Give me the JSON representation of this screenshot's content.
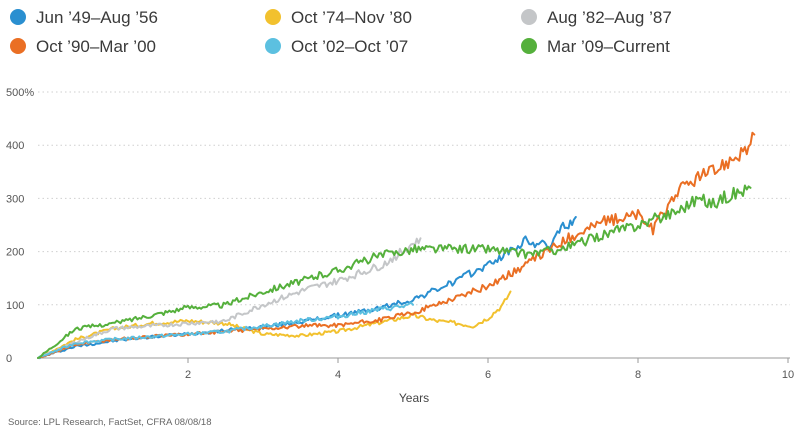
{
  "chart_data": {
    "type": "line",
    "title": "",
    "xlabel": "Years",
    "ylabel": "",
    "xlim": [
      0,
      10
    ],
    "ylim": [
      0,
      500
    ],
    "x_ticks": [
      {
        "value": 2,
        "label": "2"
      },
      {
        "value": 4,
        "label": "4"
      },
      {
        "value": 6,
        "label": "6"
      },
      {
        "value": 8,
        "label": "8"
      },
      {
        "value": 10,
        "label": "10"
      }
    ],
    "y_ticks": [
      {
        "value": 0,
        "label": "0"
      },
      {
        "value": 100,
        "label": "100"
      },
      {
        "value": 200,
        "label": "200"
      },
      {
        "value": 300,
        "label": "300"
      },
      {
        "value": 400,
        "label": "400"
      },
      {
        "value": 500,
        "label": "500%"
      }
    ],
    "grid": "horizontal dotted",
    "legend_position": "top",
    "source": "Source: LPL Research, FactSet, CFRA   08/08/18",
    "series": [
      {
        "name": "Jun ’49–Aug ’56",
        "color": "#2a8fd0",
        "points": [
          [
            0,
            0
          ],
          [
            0.5,
            22
          ],
          [
            1,
            32
          ],
          [
            1.5,
            40
          ],
          [
            2,
            45
          ],
          [
            2.5,
            52
          ],
          [
            3,
            58
          ],
          [
            3.5,
            68
          ],
          [
            4,
            80
          ],
          [
            4.5,
            92
          ],
          [
            5,
            110
          ],
          [
            5.5,
            140
          ],
          [
            6,
            175
          ],
          [
            6.5,
            220
          ],
          [
            6.8,
            210
          ],
          [
            7,
            245
          ],
          [
            7.17,
            265
          ]
        ]
      },
      {
        "name": "Oct ’74–Nov ’80",
        "color": "#f2c12e",
        "points": [
          [
            0,
            0
          ],
          [
            0.5,
            35
          ],
          [
            1,
            55
          ],
          [
            1.5,
            65
          ],
          [
            2,
            70
          ],
          [
            2.5,
            65
          ],
          [
            3,
            45
          ],
          [
            3.5,
            42
          ],
          [
            4,
            50
          ],
          [
            4.5,
            65
          ],
          [
            5,
            80
          ],
          [
            5.3,
            70
          ],
          [
            5.6,
            65
          ],
          [
            5.8,
            60
          ],
          [
            6,
            75
          ],
          [
            6.2,
            100
          ],
          [
            6.3,
            125
          ]
        ]
      },
      {
        "name": "Aug ’82–Aug ’87",
        "color": "#c4c6c8",
        "points": [
          [
            0,
            0
          ],
          [
            0.5,
            30
          ],
          [
            1,
            55
          ],
          [
            1.5,
            60
          ],
          [
            2,
            65
          ],
          [
            2.5,
            70
          ],
          [
            3,
            100
          ],
          [
            3.3,
            115
          ],
          [
            3.6,
            130
          ],
          [
            4,
            145
          ],
          [
            4.3,
            160
          ],
          [
            4.6,
            175
          ],
          [
            4.9,
            205
          ],
          [
            5.1,
            225
          ]
        ]
      },
      {
        "name": "Oct ’90–Mar ’00",
        "color": "#ea6f24",
        "points": [
          [
            0,
            0
          ],
          [
            0.5,
            25
          ],
          [
            1,
            35
          ],
          [
            1.5,
            40
          ],
          [
            2,
            45
          ],
          [
            2.5,
            50
          ],
          [
            3,
            55
          ],
          [
            3.5,
            60
          ],
          [
            4,
            62
          ],
          [
            4.5,
            70
          ],
          [
            5,
            85
          ],
          [
            5.5,
            110
          ],
          [
            6,
            135
          ],
          [
            6.5,
            175
          ],
          [
            7,
            220
          ],
          [
            7.5,
            255
          ],
          [
            8,
            270
          ],
          [
            8.2,
            240
          ],
          [
            8.5,
            310
          ],
          [
            8.8,
            340
          ],
          [
            9,
            350
          ],
          [
            9.3,
            380
          ],
          [
            9.5,
            400
          ],
          [
            9.55,
            420
          ]
        ]
      },
      {
        "name": "Oct ’02–Oct ’07",
        "color": "#5cc0e0",
        "points": [
          [
            0,
            0
          ],
          [
            0.5,
            28
          ],
          [
            1,
            35
          ],
          [
            1.5,
            40
          ],
          [
            2,
            45
          ],
          [
            2.5,
            50
          ],
          [
            3,
            60
          ],
          [
            3.5,
            70
          ],
          [
            4,
            78
          ],
          [
            4.5,
            90
          ],
          [
            5,
            100
          ]
        ]
      },
      {
        "name": "Mar ’09–Current",
        "color": "#55b03c",
        "points": [
          [
            0,
            0
          ],
          [
            0.5,
            55
          ],
          [
            1,
            65
          ],
          [
            1.5,
            80
          ],
          [
            2,
            95
          ],
          [
            2.5,
            100
          ],
          [
            3,
            125
          ],
          [
            3.5,
            145
          ],
          [
            4,
            165
          ],
          [
            4.5,
            190
          ],
          [
            5,
            205
          ],
          [
            5.5,
            205
          ],
          [
            6,
            205
          ],
          [
            6.5,
            195
          ],
          [
            7,
            205
          ],
          [
            7.5,
            230
          ],
          [
            8,
            250
          ],
          [
            8.5,
            275
          ],
          [
            8.8,
            300
          ],
          [
            9,
            290
          ],
          [
            9.2,
            305
          ],
          [
            9.5,
            320
          ]
        ]
      }
    ]
  }
}
